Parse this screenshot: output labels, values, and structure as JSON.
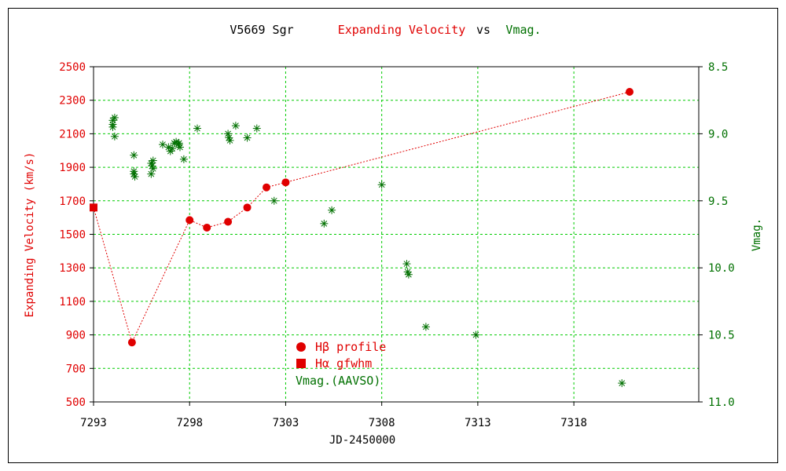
{
  "title": {
    "object": "V5669 Sgr",
    "part1": "Expanding Velocity",
    "part2": "vs",
    "part3": "Vmag.",
    "color_object": "#000000",
    "color_part1": "#e00000",
    "color_part2": "#000000",
    "color_part3": "#007000"
  },
  "colors": {
    "velocity": "#e00000",
    "vmag": "#007000",
    "grid": "#00cc00",
    "axis": "#000000"
  },
  "chart_data": {
    "type": "scatter",
    "xlabel": "JD-2450000",
    "ylabel_left": "Expanding Velocity (km/s)",
    "ylabel_right": "Vmag.",
    "xlim": [
      7293,
      7324.5
    ],
    "ylim_left": [
      500,
      2500
    ],
    "ylim_right": [
      8.5,
      11.0
    ],
    "right_axis_inverted": true,
    "grid": true,
    "x_ticks": [
      7293,
      7298,
      7303,
      7308,
      7313,
      7318
    ],
    "y_ticks_left": [
      500,
      700,
      900,
      1100,
      1300,
      1500,
      1700,
      1900,
      2100,
      2300,
      2500
    ],
    "y_ticks_right": [
      "8.5",
      "9.0",
      "9.5",
      "10.0",
      "10.5",
      "11.0"
    ],
    "legend_position": "lower-center",
    "series": [
      {
        "name": "Hβ profile",
        "legend_label": "Hβ profile",
        "axis": "left",
        "marker": "circle",
        "line": "dotted",
        "color": "#e00000",
        "points": [
          [
            7295.0,
            855
          ],
          [
            7298.0,
            1585
          ],
          [
            7298.9,
            1540
          ],
          [
            7300.0,
            1575
          ],
          [
            7301.0,
            1660
          ],
          [
            7302.0,
            1780
          ],
          [
            7303.0,
            1810
          ],
          [
            7320.9,
            2350
          ]
        ]
      },
      {
        "name": "Hα gfwhm",
        "legend_label": "Hα gfwhm",
        "axis": "left",
        "marker": "square",
        "line": "dotted",
        "color": "#e00000",
        "points": [
          [
            7293.0,
            1660
          ]
        ],
        "connects_to_first_point_of": "Hβ profile"
      },
      {
        "name": "Vmag.(AAVSO)",
        "legend_label": "Vmag.(AAVSO)",
        "axis": "right",
        "marker": "asterisk",
        "line": "none",
        "color": "#007000",
        "points": [
          [
            7294.0,
            8.9
          ],
          [
            7294.0,
            8.93
          ],
          [
            7294.0,
            8.95
          ],
          [
            7294.1,
            8.88
          ],
          [
            7294.1,
            9.02
          ],
          [
            7295.1,
            9.16
          ],
          [
            7295.1,
            9.28
          ],
          [
            7295.1,
            9.3
          ],
          [
            7295.15,
            9.32
          ],
          [
            7296.0,
            9.22
          ],
          [
            7296.05,
            9.24
          ],
          [
            7296.1,
            9.26
          ],
          [
            7296.0,
            9.3
          ],
          [
            7296.1,
            9.2
          ],
          [
            7296.6,
            9.08
          ],
          [
            7296.9,
            9.1
          ],
          [
            7297.0,
            9.13
          ],
          [
            7297.1,
            9.11
          ],
          [
            7297.2,
            9.07
          ],
          [
            7297.4,
            9.08
          ],
          [
            7297.5,
            9.1
          ],
          [
            7297.45,
            9.07
          ],
          [
            7297.3,
            9.06
          ],
          [
            7297.7,
            9.19
          ],
          [
            7298.4,
            8.96
          ],
          [
            7300.0,
            9.0
          ],
          [
            7300.05,
            9.03
          ],
          [
            7300.1,
            9.05
          ],
          [
            7300.4,
            8.94
          ],
          [
            7301.0,
            9.03
          ],
          [
            7301.5,
            8.96
          ],
          [
            7302.4,
            9.5
          ],
          [
            7305.0,
            9.67
          ],
          [
            7305.4,
            9.57
          ],
          [
            7308.0,
            9.38
          ],
          [
            7309.3,
            9.97
          ],
          [
            7309.35,
            10.03
          ],
          [
            7309.4,
            10.05
          ],
          [
            7310.3,
            10.44
          ],
          [
            7312.9,
            10.5
          ],
          [
            7320.5,
            10.86
          ]
        ]
      }
    ]
  }
}
